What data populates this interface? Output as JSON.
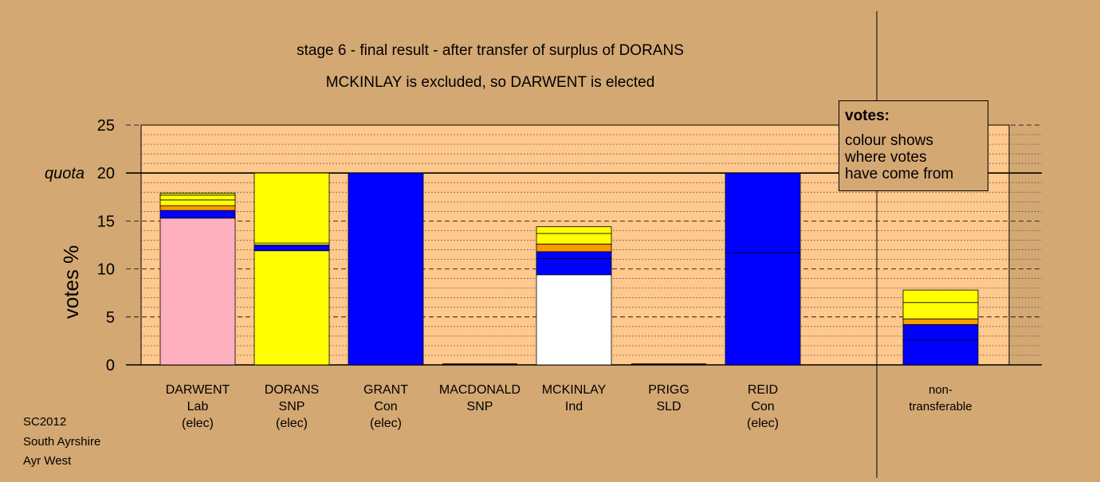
{
  "chart_data": {
    "type": "bar",
    "stacked": true,
    "title": "stage 6 - final result - after transfer of surplus of DORANS",
    "subtitle": "MCKINLAY is excluded, so DARWENT is elected",
    "ylabel": "votes %",
    "ylim": [
      0,
      25
    ],
    "yticks": [
      0,
      5,
      10,
      15,
      20,
      25
    ],
    "quota": 20,
    "quota_label": "quota",
    "grid": true,
    "categories": [
      {
        "name": "DARWENT",
        "party": "Lab",
        "status": "(elec)"
      },
      {
        "name": "DORANS",
        "party": "SNP",
        "status": "(elec)"
      },
      {
        "name": "GRANT",
        "party": "Con",
        "status": "(elec)"
      },
      {
        "name": "MACDONALD",
        "party": "SNP",
        "status": ""
      },
      {
        "name": "MCKINLAY",
        "party": "Ind",
        "status": ""
      },
      {
        "name": "PRIGG",
        "party": "SLD",
        "status": ""
      },
      {
        "name": "REID",
        "party": "Con",
        "status": "(elec)"
      },
      {
        "name": "non-",
        "party": "transferable",
        "status": ""
      }
    ],
    "stacks": [
      [
        {
          "value": 15.3,
          "color": "#ffb0c0"
        },
        {
          "value": 0.8,
          "color": "#0000ff"
        },
        {
          "value": 0.5,
          "color": "#ff9900"
        },
        {
          "value": 0.6,
          "color": "#ffff00"
        },
        {
          "value": 0.5,
          "color": "#ffff00"
        },
        {
          "value": 0.2,
          "color": "#ffff00"
        }
      ],
      [
        {
          "value": 11.9,
          "color": "#ffff00"
        },
        {
          "value": 0.6,
          "color": "#0000ff"
        },
        {
          "value": 0.2,
          "color": "#ffff00"
        },
        {
          "value": 7.3,
          "color": "#ffff00"
        }
      ],
      [
        {
          "value": 20.0,
          "color": "#0000ff"
        }
      ],
      [],
      [
        {
          "value": 9.4,
          "color": "#ffffff"
        },
        {
          "value": 1.7,
          "color": "#0000ff"
        },
        {
          "value": 0.7,
          "color": "#0000ff"
        },
        {
          "value": 0.8,
          "color": "#ff9900"
        },
        {
          "value": 1.1,
          "color": "#ffff00"
        },
        {
          "value": 0.7,
          "color": "#ffff00"
        }
      ],
      [],
      [
        {
          "value": 11.7,
          "color": "#0000ff"
        },
        {
          "value": 8.3,
          "color": "#0000ff"
        }
      ],
      [
        {
          "value": 2.6,
          "color": "#0000ff"
        },
        {
          "value": 1.6,
          "color": "#0000ff"
        },
        {
          "value": 0.6,
          "color": "#ff9900"
        },
        {
          "value": 1.7,
          "color": "#ffff00"
        },
        {
          "value": 1.3,
          "color": "#ffff00"
        }
      ]
    ],
    "legend": {
      "title": "votes:",
      "text": "colour shows\nwhere votes\nhave come from",
      "placement": "top-right"
    }
  },
  "footer": [
    "SC2012",
    "South Ayrshire",
    "Ayr West"
  ],
  "colors": {
    "page_background": "#d4a873",
    "plot_background": "#ffc88c",
    "grid": "#555555"
  }
}
